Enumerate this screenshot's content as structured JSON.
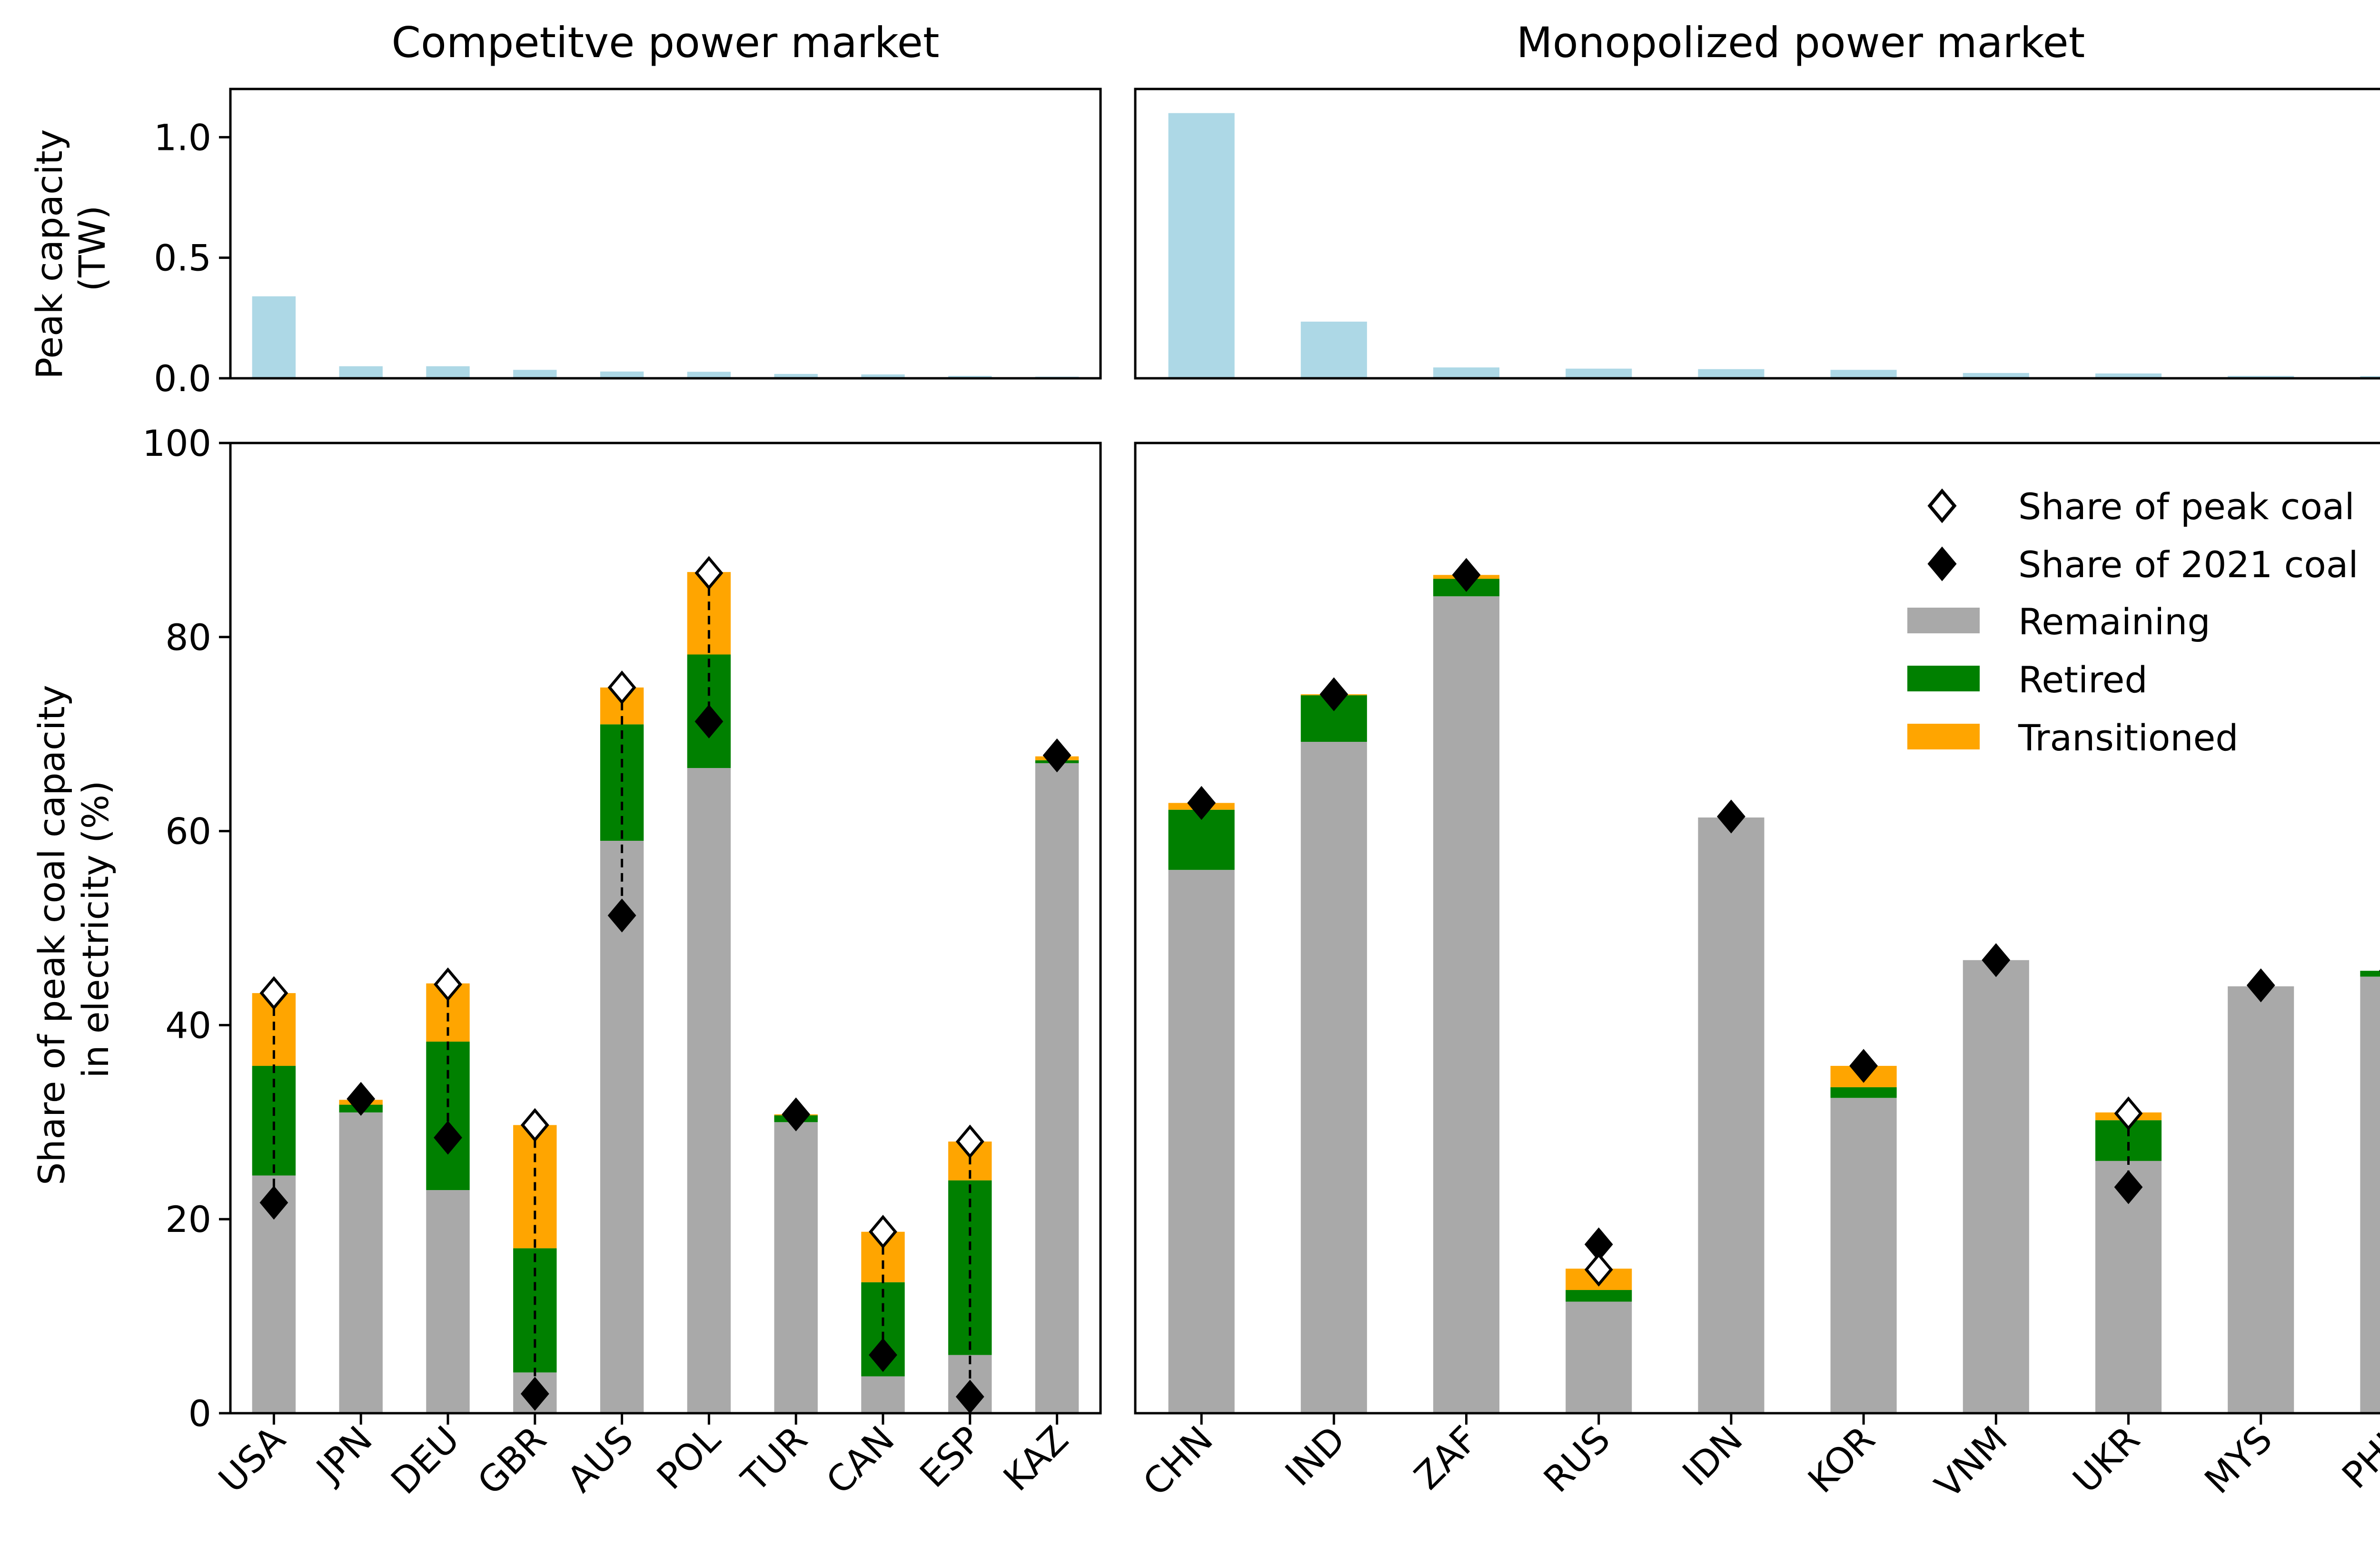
{
  "colors": {
    "peak_bar": "#add8e6",
    "remaining": "#a9a9a9",
    "retired": "#008000",
    "transitioned": "#ffa500",
    "marker": "#000000",
    "marker_open_fill": "#ffffff"
  },
  "top_ylabel": "Peak capacity\n(TW)",
  "bottom_ylabel": "Share of peak coal capacity\nin electricity (%)",
  "top_yticks": [
    "0.0",
    "0.5",
    "1.0"
  ],
  "bottom_yticks": [
    "0",
    "20",
    "40",
    "60",
    "80",
    "100"
  ],
  "legend": {
    "share_peak": "Share of peak coal",
    "share_2021": "Share of 2021 coal",
    "remaining": "Remaining",
    "retired": "Retired",
    "transitioned": "Transitioned"
  },
  "chart_data": [
    {
      "type": "bar",
      "title": "Competitve power market",
      "categories": [
        "USA",
        "JPN",
        "DEU",
        "GBR",
        "AUS",
        "POL",
        "TUR",
        "CAN",
        "ESP",
        "KAZ"
      ],
      "peak_capacity": {
        "ylabel": "Peak capacity\n(TW)",
        "ylim": [
          0,
          1.2
        ],
        "values": [
          0.34,
          0.05,
          0.05,
          0.035,
          0.028,
          0.027,
          0.018,
          0.016,
          0.01,
          0.007
        ]
      },
      "share": {
        "ylabel": "Share of peak coal capacity\nin electricity (%)",
        "ylim": [
          0,
          100
        ],
        "stacked": true,
        "series": [
          {
            "name": "Remaining",
            "values": [
              24.5,
              31,
              23,
              4.2,
              59,
              66.5,
              30,
              3.8,
              6,
              67
            ]
          },
          {
            "name": "Retired",
            "values": [
              11.3,
              0.8,
              15.3,
              12.8,
              12,
              11.7,
              0.7,
              9.7,
              18,
              0.3
            ]
          },
          {
            "name": "Transitioned",
            "values": [
              7.5,
              0.5,
              6,
              12.7,
              3.8,
              8.5,
              0.1,
              5.2,
              4,
              0.4
            ]
          }
        ],
        "markers": [
          {
            "name": "Share of peak coal",
            "values": [
              43.3,
              null,
              44.2,
              29.7,
              74.8,
              86.6,
              null,
              18.7,
              28,
              null
            ]
          },
          {
            "name": "Share of 2021 coal",
            "values": [
              21.7,
              32.4,
              28.4,
              2,
              51.3,
              71.3,
              30.8,
              6,
              1.7,
              67.8
            ]
          }
        ],
        "grid": false
      }
    },
    {
      "type": "bar",
      "title": "Monopolized power market",
      "categories": [
        "CHN",
        "IND",
        "ZAF",
        "RUS",
        "IDN",
        "KOR",
        "VNM",
        "UKR",
        "MYS",
        "PHL"
      ],
      "peak_capacity": {
        "ylim": [
          0,
          1.2
        ],
        "values": [
          1.1,
          0.235,
          0.045,
          0.04,
          0.038,
          0.035,
          0.022,
          0.02,
          0.01,
          0.009
        ]
      },
      "share": {
        "ylim": [
          0,
          100
        ],
        "stacked": true,
        "series": [
          {
            "name": "Remaining",
            "values": [
              56,
              69.2,
              84.2,
              11.5,
              61.4,
              32.5,
              46.7,
              26,
              44,
              45
            ]
          },
          {
            "name": "Retired",
            "values": [
              6.2,
              4.8,
              1.8,
              1.2,
              0,
              1.1,
              0,
              4.2,
              0,
              0.6
            ]
          },
          {
            "name": "Transitioned",
            "values": [
              0.7,
              0.1,
              0.4,
              2.2,
              0,
              2.2,
              0,
              0.8,
              0,
              0
            ]
          }
        ],
        "markers": [
          {
            "name": "Share of peak coal",
            "values": [
              null,
              null,
              null,
              14.8,
              null,
              null,
              null,
              30.9,
              null,
              null
            ]
          },
          {
            "name": "Share of 2021 coal",
            "values": [
              62.9,
              74.1,
              86.4,
              17.4,
              61.5,
              35.8,
              46.7,
              23.3,
              44.1,
              45.6
            ]
          }
        ],
        "grid": false,
        "legend_position": "top-right"
      }
    }
  ]
}
